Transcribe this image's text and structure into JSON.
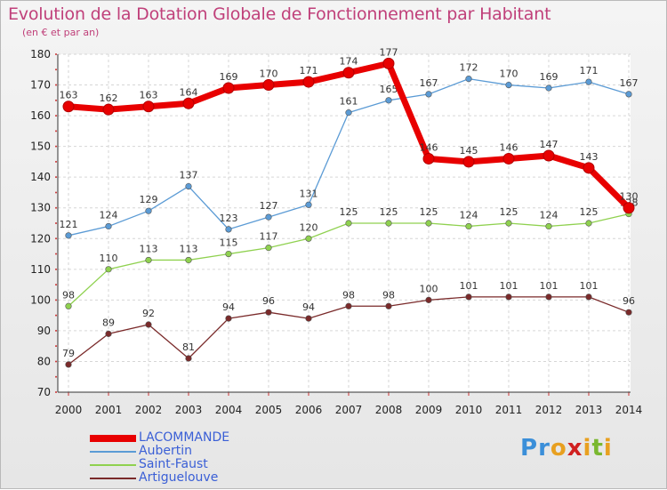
{
  "title": "Evolution de la Dotation Globale de Fonctionnement par Habitant",
  "subtitle": "(en € et par an)",
  "brand": {
    "letters": [
      "P",
      "r",
      "o",
      "x",
      "i",
      "t",
      "i"
    ],
    "colors": [
      "#3b8fd9",
      "#3b8fd9",
      "#e8a020",
      "#d02020",
      "#e8a020",
      "#7ab830",
      "#e8a020"
    ]
  },
  "chart_data": {
    "type": "line",
    "title": "Evolution de la Dotation Globale de Fonctionnement par Habitant",
    "subtitle": "(en € et par an)",
    "xlabel": "",
    "ylabel": "",
    "x": [
      "2000",
      "2001",
      "2002",
      "2003",
      "2004",
      "2005",
      "2006",
      "2007",
      "2008",
      "2009",
      "2010",
      "2011",
      "2012",
      "2013",
      "2014"
    ],
    "ylim": [
      70,
      180
    ],
    "yticks": [
      70,
      80,
      90,
      100,
      110,
      120,
      130,
      140,
      150,
      160,
      170,
      180
    ],
    "grid": true,
    "legend_position": "bottom-left",
    "series": [
      {
        "name": "LACOMMANDE",
        "color": "#e80000",
        "emphasis": true,
        "values": [
          163,
          162,
          163,
          164,
          169,
          170,
          171,
          174,
          177,
          146,
          145,
          146,
          147,
          143,
          130
        ],
        "labels": [
          "163",
          "162",
          "163",
          "164",
          "169",
          "170",
          "171",
          "174",
          "177",
          "146",
          "145",
          "146",
          "147",
          "143",
          "130"
        ]
      },
      {
        "name": "Aubertin",
        "color": "#5b9bd5",
        "emphasis": false,
        "values": [
          121,
          124,
          129,
          137,
          123,
          127,
          131,
          161,
          165,
          167,
          172,
          170,
          169,
          171,
          167
        ],
        "labels": [
          "121",
          "124",
          "129",
          "137",
          "123",
          "127",
          "131",
          "161",
          "165",
          "167",
          "172",
          "170",
          "169",
          "171",
          "167"
        ]
      },
      {
        "name": "Saint-Faust",
        "color": "#8fd14f",
        "emphasis": false,
        "values": [
          98,
          110,
          113,
          113,
          115,
          117,
          120,
          125,
          125,
          125,
          124,
          125,
          124,
          125,
          128
        ],
        "labels": [
          "98",
          "110",
          "113",
          "113",
          "115",
          "117",
          "120",
          "125",
          "125",
          "125",
          "124",
          "125",
          "124",
          "125",
          "128"
        ]
      },
      {
        "name": "Artiguelouve",
        "color": "#7a2a2a",
        "emphasis": false,
        "values": [
          79,
          89,
          92,
          81,
          94,
          96,
          94,
          98,
          98,
          100,
          101,
          101,
          101,
          101,
          96
        ],
        "labels": [
          "79",
          "89",
          "92",
          "81",
          "94",
          "96",
          "94",
          "98",
          "98",
          "100",
          "101",
          "101",
          "101",
          "101",
          "96"
        ]
      }
    ]
  }
}
